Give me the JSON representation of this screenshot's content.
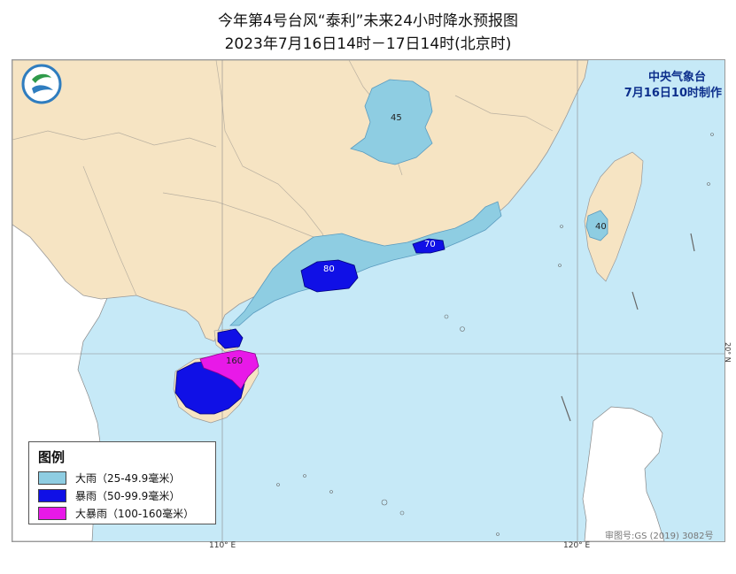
{
  "title": {
    "line1": "今年第4号台风“泰利”未来24小时降水预报图",
    "line2": "2023年7月16日14时－17日14时(北京时)"
  },
  "agency": {
    "name": "中央气象台",
    "issued": "7月16日10时制作"
  },
  "logo_icon": "cma-logo",
  "axes": {
    "lon_labels": [
      "110° E",
      "120° E"
    ],
    "lat_labels": [
      "20° N"
    ]
  },
  "approval": "审图号:GS (2019) 3082号",
  "legend": {
    "title": "图例",
    "items": [
      {
        "label": "大雨（25-49.9毫米）",
        "color": "#8ecde2"
      },
      {
        "label": "暴雨（50-99.9毫米）",
        "color": "#1010e6"
      },
      {
        "label": "大暴雨（100-160毫米）",
        "color": "#e819e8"
      }
    ]
  },
  "contour_labels": {
    "jiangxi": "45",
    "guangdong_west": "80",
    "guangdong_east": "70",
    "taiwan": "40",
    "hainan": "160"
  },
  "colors": {
    "land": "#f6e4c3",
    "sea": "#c6e9f7",
    "foreign_land": "#ffffff",
    "heavy_rain": "#8ecde2",
    "rainstorm": "#1010e6",
    "heavy_rainstorm": "#e819e8"
  }
}
